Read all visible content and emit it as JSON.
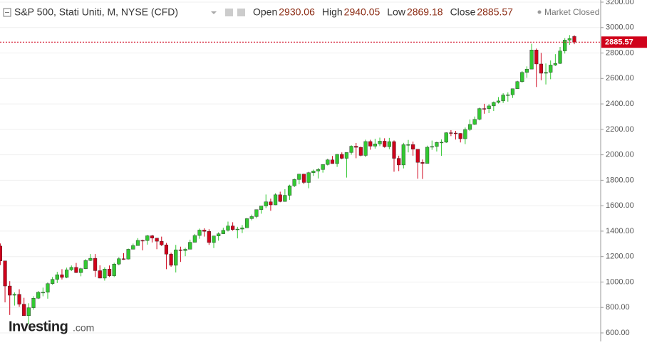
{
  "chart_data": {
    "type": "candlestick",
    "title": "S&P 500, Stati Uniti, M, NYSE (CFD)",
    "ohlc_labels": [
      "Open",
      "High",
      "Low",
      "Close"
    ],
    "status": "Market Closed",
    "logo": {
      "brand": "Investing",
      "suffix": ".com"
    },
    "up_color": "#32c832",
    "down_color": "#d0021b",
    "ylim": [
      600,
      3200
    ],
    "yticks": [
      {
        "value": 600,
        "label": "600.00"
      },
      {
        "value": 800,
        "label": "800.00"
      },
      {
        "value": 1000,
        "label": "1000.00"
      },
      {
        "value": 1200,
        "label": "1200.00"
      },
      {
        "value": 1400,
        "label": "1400.00"
      },
      {
        "value": 1600,
        "label": "1600.00"
      },
      {
        "value": 1800,
        "label": "1800.00"
      },
      {
        "value": 2000,
        "label": "2000.00"
      },
      {
        "value": 2200,
        "label": "2200.00"
      },
      {
        "value": 2400,
        "label": "2400.00"
      },
      {
        "value": 2600,
        "label": "2600.00"
      },
      {
        "value": 2800,
        "label": "2800.00"
      },
      {
        "value": 3000,
        "label": "3000.00"
      },
      {
        "value": 3200,
        "label": "3200.00"
      }
    ],
    "grid": true,
    "open": [
      1282.8,
      1166.4,
      968.8,
      896.2,
      903.3,
      825.9,
      735.1,
      797.9,
      872.8,
      919.1,
      919.3,
      987.5,
      1020.6,
      1057.1,
      1036.2,
      1095.6,
      1115.1,
      1073.9,
      1104.5,
      1169.4,
      1186.7,
      1089.4,
      1030.7,
      1101.6,
      1049.3,
      1141.2,
      1183.3,
      1180.6,
      1257.6,
      1286.1,
      1327.2,
      1325.8,
      1363.6,
      1345.2,
      1320.6,
      1292.3,
      1218.9,
      1131.4,
      1253.3,
      1247.0,
      1257.6,
      1312.4,
      1365.7,
      1408.5,
      1397.9,
      1310.3,
      1362.2,
      1379.3,
      1406.6,
      1440.7,
      1412.2,
      1416.2,
      1426.2,
      1498.1,
      1514.7,
      1569.2,
      1597.6,
      1630.7,
      1606.3,
      1685.7,
      1633.0,
      1681.6,
      1756.5,
      1805.8,
      1848.4,
      1782.6,
      1859.5,
      1872.3,
      1884.0,
      1923.6,
      1960.2,
      1930.7,
      2003.4,
      1972.3,
      2018.1,
      2067.6,
      2058.9,
      1995.0,
      2104.5,
      2067.9,
      2085.5,
      2107.4,
      2063.1,
      2103.8,
      1972.2,
      1920.0,
      2079.4,
      2080.4,
      2043.9,
      1940.2,
      1932.2,
      2059.7,
      2065.3,
      2097.0,
      2098.9,
      2173.6,
      2171.0,
      2168.3,
      2126.2,
      2198.8,
      2238.8,
      2278.9,
      2363.6,
      2362.7,
      2384.2,
      2411.8,
      2423.4,
      2470.3,
      2471.7,
      2519.4,
      2575.3,
      2647.6,
      2673.6,
      2823.8,
      2713.8,
      2640.9,
      2648.1,
      2705.3,
      2718.4,
      2816.3,
      2901.5,
      2930.06
    ],
    "high": [
      1303,
      1167,
      1007,
      918,
      943,
      876,
      833,
      888,
      930,
      956,
      997,
      1039,
      1080,
      1101,
      1113,
      1130,
      1150,
      1112,
      1180,
      1220,
      1220,
      1131,
      1115,
      1130,
      1151,
      1196,
      1227,
      1263,
      1302,
      1345,
      1333,
      1370,
      1371,
      1346,
      1357,
      1307,
      1230,
      1292,
      1278,
      1269,
      1333,
      1378,
      1420,
      1422,
      1415,
      1364,
      1391,
      1427,
      1475,
      1470,
      1434,
      1448,
      1504,
      1530,
      1570,
      1598,
      1688,
      1655,
      1698,
      1710,
      1730,
      1765,
      1814,
      1850,
      1851,
      1867,
      1884,
      1897,
      1925,
      1969,
      1991,
      2006,
      2019,
      2018,
      2075,
      2093,
      2064,
      2119,
      2118,
      2126,
      2135,
      2130,
      2133,
      2113,
      1993,
      2094,
      2117,
      2104,
      2038,
      1963,
      2072,
      2112,
      2104,
      2121,
      2177,
      2194,
      2188,
      2170,
      2214,
      2278,
      2301,
      2371,
      2401,
      2399,
      2419,
      2454,
      2484,
      2491,
      2520,
      2582,
      2658,
      2695,
      2873,
      2835,
      2801,
      2718,
      2742,
      2791,
      2848,
      2917,
      2941,
      2940.05
    ],
    "low": [
      1133,
      840,
      741,
      815,
      805,
      735,
      667,
      783,
      866,
      888,
      869,
      978,
      992,
      1020,
      1030,
      1086,
      1071,
      1045,
      1101,
      1165,
      1040,
      1029,
      1011,
      1040,
      1039,
      1131,
      1174,
      1177,
      1257,
      1289,
      1249,
      1294,
      1311,
      1258,
      1283,
      1101,
      1120,
      1075,
      1158,
      1203,
      1258,
      1312,
      1340,
      1357,
      1292,
      1267,
      1325,
      1377,
      1397,
      1403,
      1343,
      1385,
      1426,
      1485,
      1501,
      1537,
      1581,
      1560,
      1605,
      1627,
      1633,
      1646,
      1746,
      1768,
      1770,
      1737,
      1834,
      1814,
      1860,
      1916,
      1930,
      1905,
      1965,
      1821,
      2001,
      1973,
      1988,
      1981,
      2040,
      2049,
      2068,
      2056,
      2044,
      1867,
      1872,
      1893,
      2019,
      1993,
      1812,
      1810,
      1937,
      2039,
      2026,
      1992,
      2093,
      2147,
      2120,
      2097,
      2084,
      2187,
      2234,
      2271,
      2323,
      2328,
      2344,
      2403,
      2407,
      2418,
      2447,
      2520,
      2566,
      2605,
      2683,
      2533,
      2586,
      2553,
      2594,
      2698,
      2713,
      2796,
      2864,
      2869.18
    ],
    "close": [
      1166.4,
      968.8,
      896.2,
      903.3,
      825.9,
      735.1,
      797.9,
      872.8,
      919.1,
      919.3,
      987.5,
      1020.6,
      1057.1,
      1036.2,
      1095.6,
      1115.1,
      1073.9,
      1104.5,
      1169.4,
      1186.7,
      1089.4,
      1030.7,
      1101.6,
      1049.3,
      1141.2,
      1183.3,
      1180.6,
      1257.6,
      1286.1,
      1327.2,
      1325.8,
      1363.6,
      1345.2,
      1320.6,
      1292.3,
      1218.9,
      1131.4,
      1253.3,
      1247.0,
      1257.6,
      1312.4,
      1365.7,
      1408.5,
      1397.9,
      1310.3,
      1362.2,
      1379.3,
      1406.6,
      1440.7,
      1412.2,
      1416.2,
      1426.2,
      1498.1,
      1514.7,
      1569.2,
      1597.6,
      1630.7,
      1606.3,
      1685.7,
      1633.0,
      1681.6,
      1756.5,
      1805.8,
      1848.4,
      1782.6,
      1859.5,
      1872.3,
      1884.0,
      1923.6,
      1960.2,
      1930.7,
      2003.4,
      1972.3,
      2018.1,
      2067.6,
      2058.9,
      1995.0,
      2104.5,
      2067.9,
      2085.5,
      2107.4,
      2063.1,
      2103.8,
      1972.2,
      1920.0,
      2079.4,
      2080.4,
      2043.9,
      1940.2,
      1932.2,
      2059.7,
      2065.3,
      2097.0,
      2098.9,
      2173.6,
      2171.0,
      2168.3,
      2126.2,
      2198.8,
      2238.8,
      2278.9,
      2363.6,
      2362.7,
      2384.2,
      2411.8,
      2423.4,
      2470.3,
      2471.7,
      2519.4,
      2575.3,
      2647.6,
      2673.6,
      2823.8,
      2713.8,
      2640.9,
      2648.1,
      2705.3,
      2718.4,
      2816.3,
      2901.5,
      2914.0,
      2885.57
    ]
  }
}
